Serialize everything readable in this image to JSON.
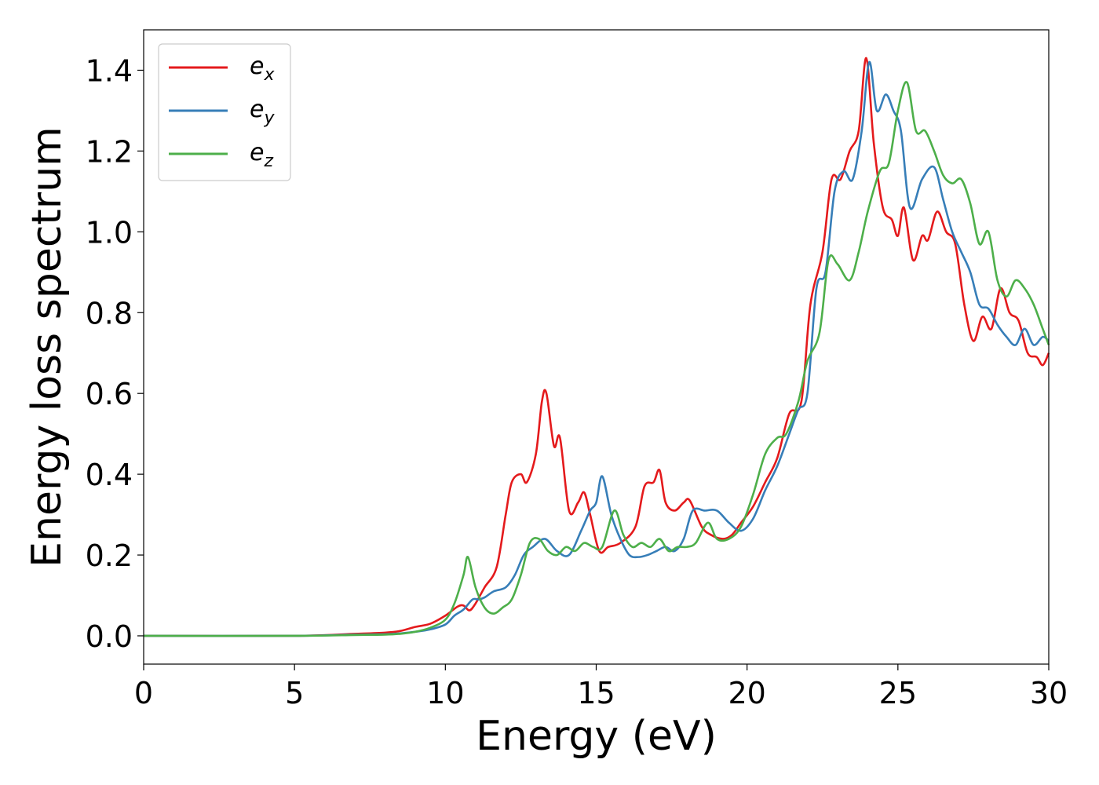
{
  "chart_data": {
    "type": "line",
    "title": "",
    "xlabel": "Energy (eV)",
    "ylabel": "Energy loss spectrum",
    "xlim": [
      0,
      30
    ],
    "ylim": [
      -0.07,
      1.5
    ],
    "xticks": [
      0,
      5,
      10,
      15,
      20,
      25,
      30
    ],
    "yticks": [
      0.0,
      0.2,
      0.4,
      0.6,
      0.8,
      1.0,
      1.2,
      1.4
    ],
    "xtick_labels": [
      "0",
      "5",
      "10",
      "15",
      "20",
      "25",
      "30"
    ],
    "ytick_labels": [
      "0.0",
      "0.2",
      "0.4",
      "0.6",
      "0.8",
      "1.0",
      "1.2",
      "1.4"
    ],
    "grid": false,
    "legend": "top-left",
    "series": [
      {
        "name": "e_x",
        "legend_base": "e",
        "legend_sub": "x",
        "color": "#e41a1c",
        "x": [
          0,
          5,
          7,
          8,
          8.5,
          9,
          9.5,
          10,
          10.4,
          10.6,
          10.8,
          11,
          11.3,
          11.7,
          12,
          12.2,
          12.5,
          12.7,
          13,
          13.2,
          13.35,
          13.6,
          13.8,
          14.1,
          14.4,
          14.6,
          14.8,
          15.1,
          15.4,
          15.8,
          16.3,
          16.6,
          16.9,
          17.1,
          17.3,
          17.6,
          17.9,
          18.1,
          18.5,
          18.8,
          19.2,
          19.5,
          19.8,
          20.2,
          20.6,
          21,
          21.4,
          21.8,
          22.1,
          22.5,
          22.8,
          23.1,
          23.4,
          23.7,
          23.95,
          24.2,
          24.5,
          24.8,
          25,
          25.2,
          25.5,
          25.8,
          26,
          26.3,
          26.6,
          26.9,
          27.2,
          27.5,
          27.8,
          28.1,
          28.4,
          28.7,
          29,
          29.3,
          29.6,
          29.8,
          30
        ],
        "y": [
          0.0,
          0.0,
          0.005,
          0.008,
          0.012,
          0.022,
          0.03,
          0.05,
          0.072,
          0.075,
          0.063,
          0.08,
          0.12,
          0.17,
          0.3,
          0.38,
          0.4,
          0.38,
          0.45,
          0.58,
          0.6,
          0.47,
          0.49,
          0.31,
          0.33,
          0.355,
          0.3,
          0.21,
          0.22,
          0.23,
          0.27,
          0.37,
          0.38,
          0.41,
          0.33,
          0.31,
          0.33,
          0.335,
          0.27,
          0.25,
          0.24,
          0.25,
          0.28,
          0.32,
          0.38,
          0.44,
          0.55,
          0.58,
          0.82,
          0.95,
          1.13,
          1.13,
          1.2,
          1.25,
          1.43,
          1.22,
          1.06,
          1.03,
          0.99,
          1.06,
          0.93,
          0.99,
          0.98,
          1.05,
          1.0,
          0.97,
          0.82,
          0.73,
          0.79,
          0.76,
          0.86,
          0.8,
          0.78,
          0.7,
          0.69,
          0.67,
          0.7
        ]
      },
      {
        "name": "e_y",
        "legend_base": "e",
        "legend_sub": "y",
        "color": "#377eb8",
        "x": [
          0,
          5,
          7,
          8,
          8.5,
          9,
          9.5,
          10,
          10.3,
          10.6,
          10.9,
          11.1,
          11.3,
          11.6,
          12,
          12.3,
          12.6,
          12.9,
          13.3,
          13.7,
          14.1,
          14.5,
          14.8,
          15.0,
          15.2,
          15.5,
          15.8,
          16.1,
          16.4,
          16.7,
          17.0,
          17.3,
          17.6,
          17.9,
          18.2,
          18.6,
          19.0,
          19.4,
          19.8,
          20.2,
          20.6,
          21.0,
          21.4,
          21.7,
          22.0,
          22.3,
          22.6,
          22.9,
          23.2,
          23.5,
          23.8,
          24.05,
          24.3,
          24.6,
          24.85,
          25.1,
          25.4,
          25.8,
          26.2,
          26.5,
          26.8,
          27.1,
          27.4,
          27.7,
          28.0,
          28.3,
          28.6,
          28.9,
          29.2,
          29.5,
          29.8,
          30
        ],
        "y": [
          0.0,
          0.0,
          0.003,
          0.004,
          0.006,
          0.01,
          0.016,
          0.028,
          0.05,
          0.065,
          0.09,
          0.09,
          0.095,
          0.11,
          0.12,
          0.15,
          0.2,
          0.22,
          0.24,
          0.21,
          0.2,
          0.26,
          0.31,
          0.33,
          0.395,
          0.3,
          0.24,
          0.2,
          0.195,
          0.2,
          0.21,
          0.22,
          0.21,
          0.24,
          0.31,
          0.31,
          0.31,
          0.28,
          0.26,
          0.29,
          0.36,
          0.42,
          0.5,
          0.56,
          0.6,
          0.86,
          0.9,
          1.1,
          1.15,
          1.13,
          1.25,
          1.42,
          1.3,
          1.34,
          1.3,
          1.25,
          1.06,
          1.13,
          1.16,
          1.08,
          1.0,
          0.95,
          0.9,
          0.82,
          0.81,
          0.77,
          0.74,
          0.72,
          0.76,
          0.72,
          0.74,
          0.73
        ]
      },
      {
        "name": "e_z",
        "legend_base": "e",
        "legend_sub": "z",
        "color": "#4daf4a",
        "x": [
          0,
          5,
          7,
          8,
          8.5,
          9,
          9.5,
          10,
          10.3,
          10.6,
          10.75,
          11.0,
          11.3,
          11.6,
          11.9,
          12.2,
          12.5,
          12.8,
          13.1,
          13.4,
          13.7,
          14.0,
          14.3,
          14.6,
          14.9,
          15.2,
          15.6,
          15.9,
          16.2,
          16.5,
          16.8,
          17.1,
          17.4,
          17.7,
          18.0,
          18.3,
          18.7,
          19.0,
          19.4,
          19.8,
          20.2,
          20.6,
          21.0,
          21.3,
          21.7,
          22.0,
          22.4,
          22.7,
          23.0,
          23.4,
          23.7,
          24.0,
          24.4,
          24.7,
          25.0,
          25.3,
          25.6,
          25.9,
          26.2,
          26.5,
          26.8,
          27.1,
          27.4,
          27.7,
          28.0,
          28.3,
          28.6,
          28.9,
          29.2,
          29.5,
          29.8,
          30
        ],
        "y": [
          0.0,
          0.0,
          0.002,
          0.003,
          0.005,
          0.01,
          0.02,
          0.04,
          0.08,
          0.15,
          0.195,
          0.12,
          0.07,
          0.055,
          0.07,
          0.09,
          0.15,
          0.23,
          0.24,
          0.21,
          0.2,
          0.22,
          0.21,
          0.23,
          0.22,
          0.22,
          0.31,
          0.25,
          0.22,
          0.23,
          0.22,
          0.24,
          0.21,
          0.22,
          0.22,
          0.23,
          0.28,
          0.24,
          0.24,
          0.27,
          0.35,
          0.45,
          0.49,
          0.5,
          0.58,
          0.68,
          0.75,
          0.93,
          0.92,
          0.88,
          0.95,
          1.05,
          1.15,
          1.17,
          1.3,
          1.37,
          1.25,
          1.25,
          1.2,
          1.14,
          1.12,
          1.13,
          1.07,
          0.97,
          1.0,
          0.88,
          0.84,
          0.88,
          0.86,
          0.82,
          0.76,
          0.72
        ]
      }
    ]
  }
}
